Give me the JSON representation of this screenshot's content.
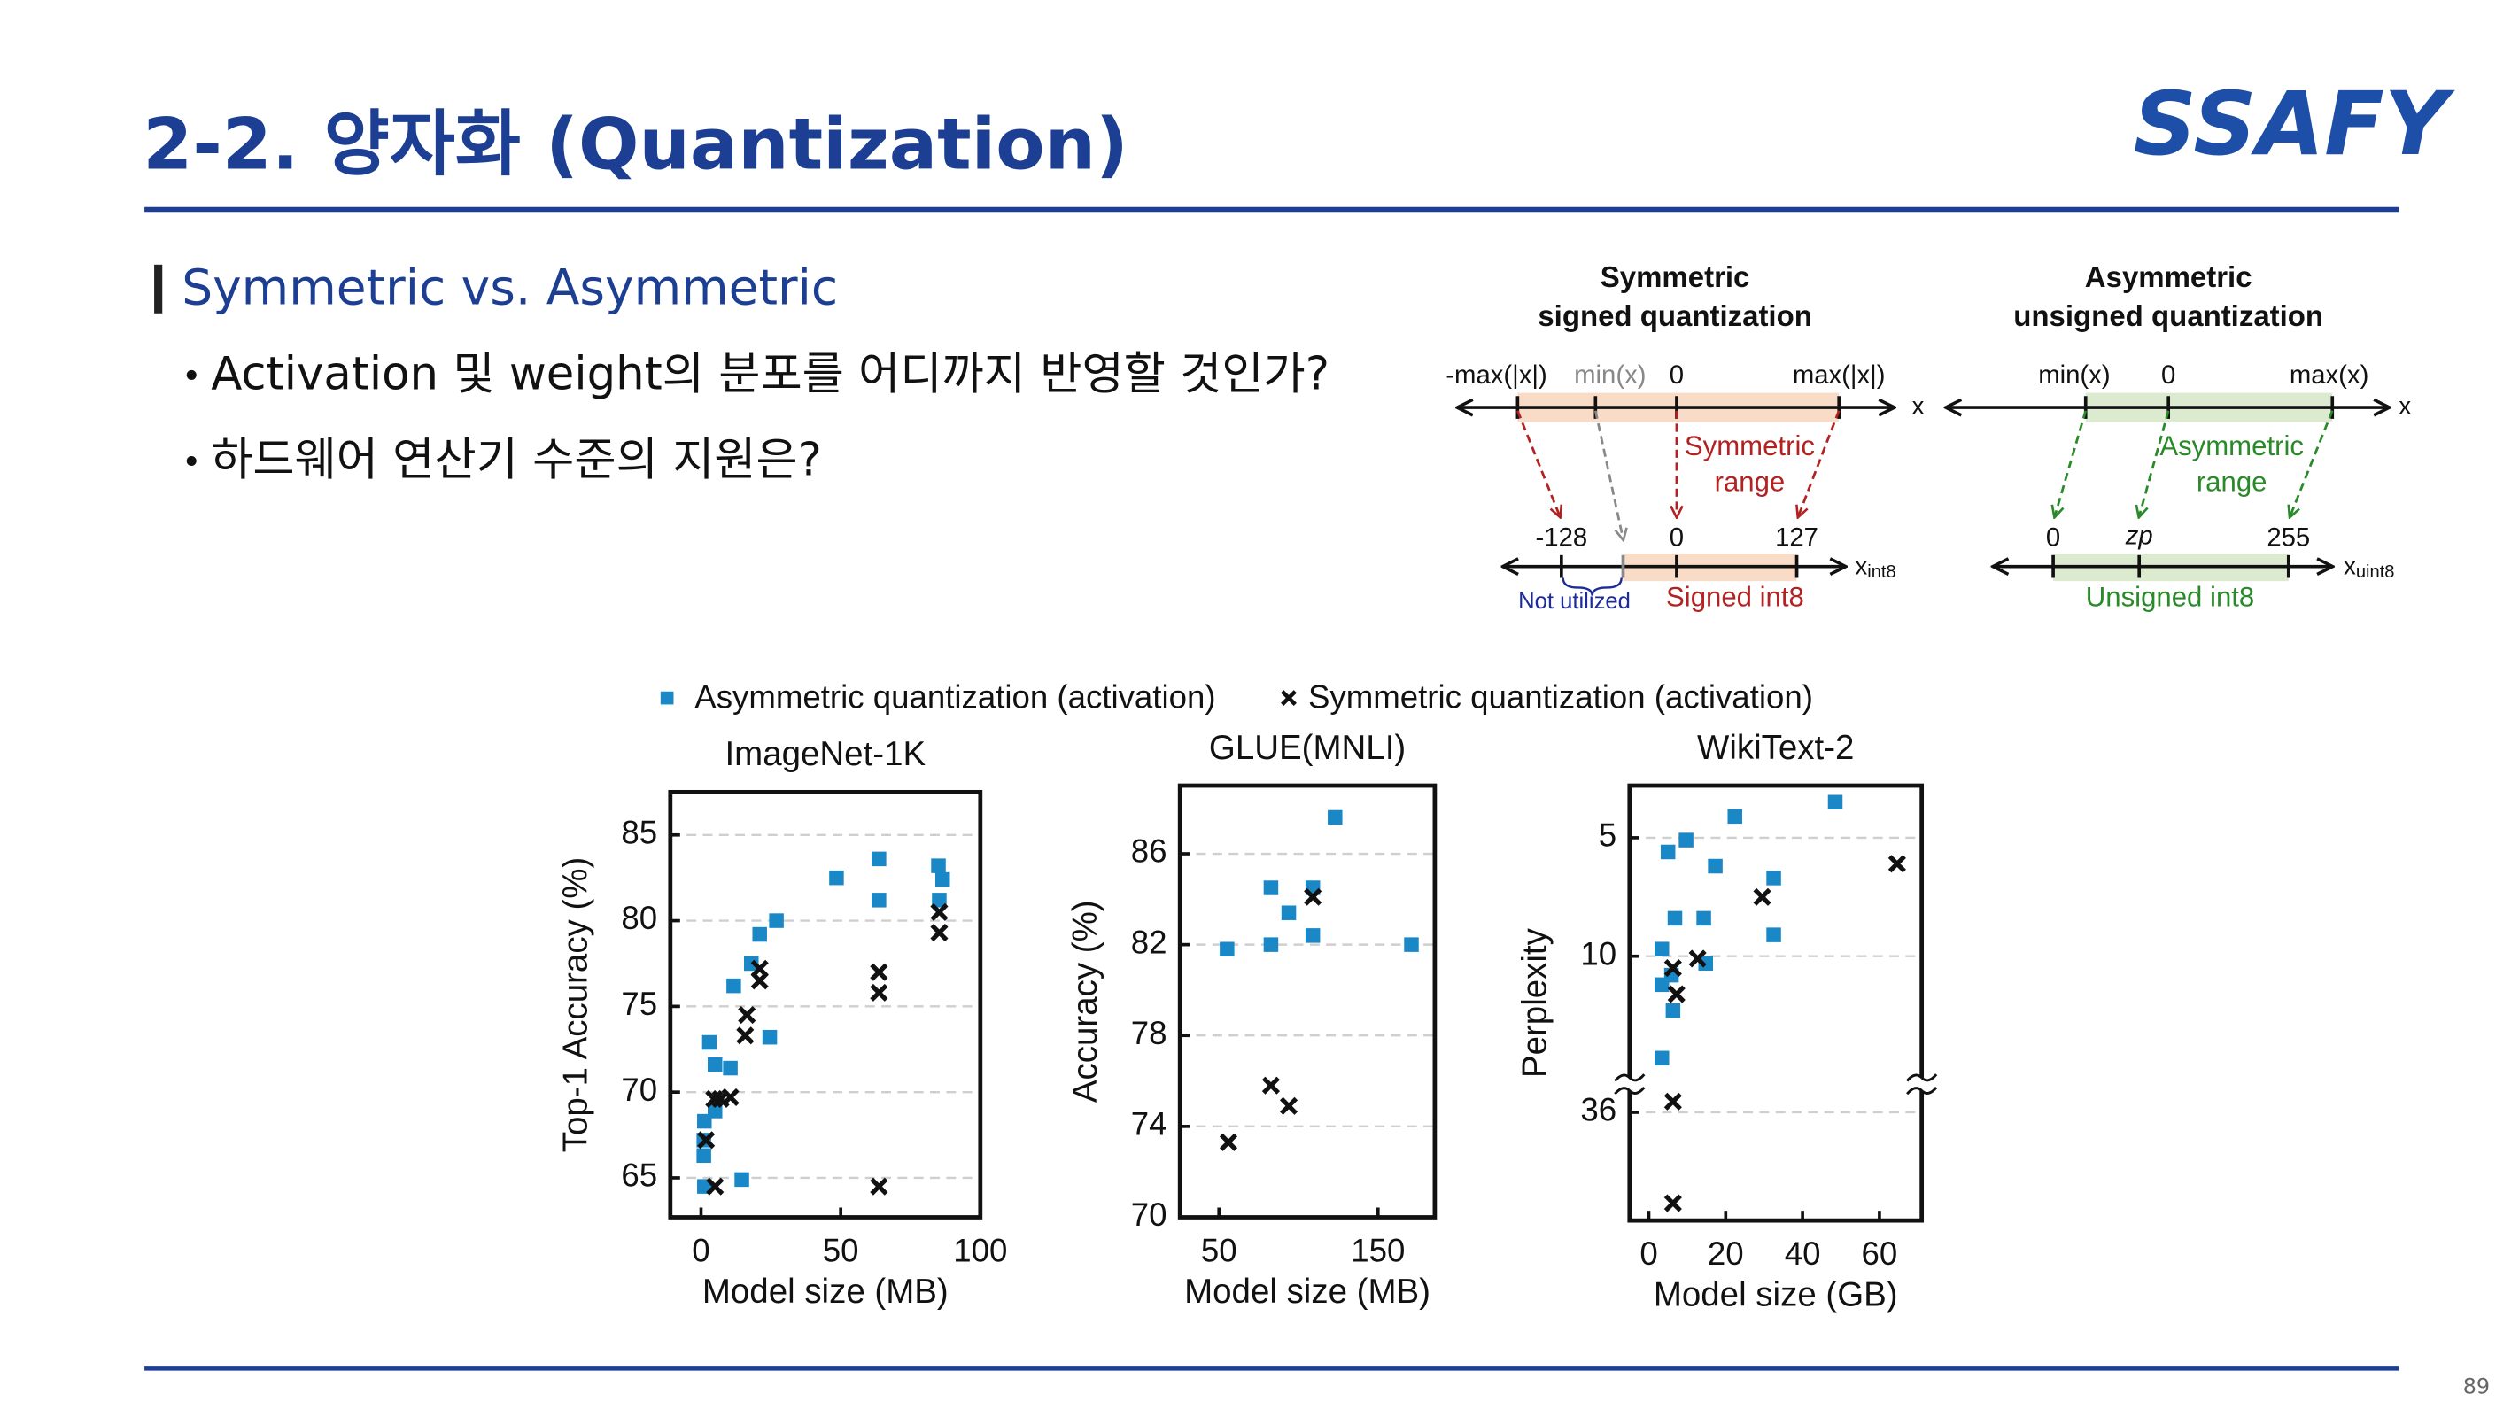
{
  "header": {
    "title": "2-2. 양자화 (Quantization)",
    "logo": "SSAFY"
  },
  "section": {
    "heading": "Symmetric vs. Asymmetric",
    "bullets": [
      "Activation 및 weight의 분포를 어디까지 반영할 것인가?",
      "하드웨어 연산기 수준의 지원은?"
    ]
  },
  "diagram": {
    "symmetric": {
      "title": [
        "Symmetric",
        "signed quantization"
      ],
      "top_labels": [
        "-max(|x|)",
        "min(x)",
        "0",
        "max(|x|)"
      ],
      "axis": "x",
      "range_label": [
        "Symmetric",
        "range"
      ],
      "bottom_labels": [
        "-128",
        "0",
        "127"
      ],
      "int_axis": [
        "x",
        "int8"
      ],
      "not_utilized": "Not utilized",
      "int_label": "Signed int8"
    },
    "asymmetric": {
      "title": [
        "Asymmetric",
        "unsigned quantization"
      ],
      "top_labels": [
        "min(x)",
        "0",
        "max(x)"
      ],
      "axis": "x",
      "range_label": [
        "Asymmetric",
        "range"
      ],
      "bottom_labels": [
        "0",
        "zp",
        "255"
      ],
      "int_axis": [
        "x",
        "uint8"
      ],
      "int_label": "Unsigned int8"
    }
  },
  "chart_data": [
    {
      "type": "scatter",
      "title": "ImageNet-1K",
      "x_label": "Model size (MB)",
      "y_label": "Top-1 Accuracy (%)",
      "xlim": [
        -11,
        100
      ],
      "xticks": [
        0,
        50,
        100
      ],
      "ylim": [
        62.7,
        87.5
      ],
      "yticks": [
        65,
        70,
        75,
        80,
        85
      ],
      "grid": true,
      "series": [
        {
          "name": "Asymmetric quantization (activation)",
          "color": "#1a87c6",
          "marker": "square",
          "x": [
            1.2,
            1,
            1,
            1.2,
            3,
            5,
            5,
            10.5,
            11.7,
            14.6,
            18,
            21,
            24.6,
            27,
            48.5,
            63.7,
            63.7,
            85,
            86.5,
            85.3
          ],
          "values": [
            68.3,
            67.2,
            66.3,
            64.5,
            72.9,
            71.6,
            68.9,
            71.4,
            76.2,
            64.9,
            77.5,
            79.2,
            73.2,
            80.0,
            82.5,
            83.6,
            81.2,
            83.2,
            82.4,
            81.2
          ]
        },
        {
          "name": "Symmetric quantization (activation)",
          "color": "#111111",
          "marker": "x",
          "x": [
            1.8,
            4.7,
            7,
            10.5,
            5,
            16.4,
            15.8,
            21,
            21,
            63.7,
            63.7,
            63.7,
            85.3,
            85.3
          ],
          "values": [
            67.2,
            69.6,
            69.6,
            69.7,
            64.5,
            74.5,
            73.3,
            77.2,
            76.5,
            77.0,
            75.8,
            64.5,
            80.5,
            79.3
          ]
        }
      ]
    },
    {
      "type": "scatter",
      "title": "GLUE(MNLI)",
      "x_label": "Model size (MB)",
      "y_label": "Accuracy (%)",
      "xlim": [
        25.5,
        185.7
      ],
      "xticks": [
        50,
        150
      ],
      "ylim": [
        70,
        89
      ],
      "yticks": [
        70,
        74,
        78,
        82,
        86
      ],
      "grid": true,
      "series": [
        {
          "color": "#1a87c6",
          "marker": "square",
          "x": [
            55.1,
            82.7,
            82.7,
            93.9,
            109,
            109,
            123,
            171
          ],
          "values": [
            81.8,
            84.5,
            82.0,
            83.4,
            84.5,
            82.4,
            87.6,
            82.0
          ]
        },
        {
          "color": "#111111",
          "marker": "x",
          "x": [
            56,
            82.7,
            93.9,
            109
          ],
          "values": [
            73.3,
            75.8,
            74.9,
            84.1
          ]
        }
      ]
    },
    {
      "type": "scatter",
      "title": "WikiText-2",
      "x_label": "Model size (GB)",
      "y_label": "Perplexity",
      "xlim": [
        -5,
        71
      ],
      "xticks": [
        0,
        20,
        40,
        60
      ],
      "y_inverted": true,
      "grid": true,
      "y_segments": [
        {
          "ylim": [
            2.8,
            15.4
          ],
          "yticks": [
            5,
            10
          ]
        },
        {
          "ylim": [
            34.7,
            41
          ],
          "yticks": [
            36
          ]
        }
      ],
      "series": [
        {
          "color": "#1a87c6",
          "marker": "square",
          "x": [
            5,
            9.7,
            22.4,
            48.5,
            17.3,
            14.3,
            6.8,
            3.4,
            3.4,
            5.9,
            14.8,
            6.3,
            3.4,
            32.5,
            32.5
          ],
          "values": [
            5.6,
            5.1,
            4.1,
            3.5,
            6.2,
            8.4,
            8.4,
            9.7,
            11.2,
            10.8,
            10.3,
            12.3,
            14.3,
            6.7,
            9.1
          ]
        },
        {
          "color": "#111111",
          "marker": "x",
          "x": [
            6.3,
            7.2,
            12.7,
            29.5,
            64.6,
            6.3,
            6.3
          ],
          "values": [
            10.5,
            11.6,
            10.1,
            7.5,
            6.1,
            35.5,
            40.2
          ]
        }
      ]
    }
  ],
  "page_number": "89"
}
